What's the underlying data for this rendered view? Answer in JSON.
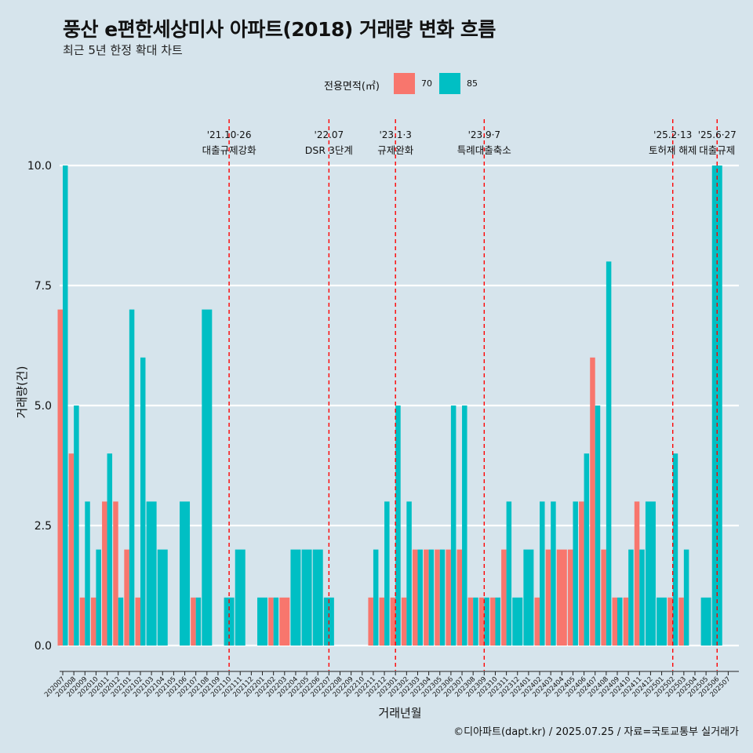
{
  "chart_data": {
    "type": "bar",
    "title": "풍산 e편한세상미사 아파트(2018) 거래량 변화 흐름",
    "subtitle": "최근 5년 한정 확대 차트",
    "xlabel": "거래년월",
    "ylabel": "거래량(건)",
    "ylim": [
      0,
      10
    ],
    "yticks": [
      "0.0",
      "2.5",
      "5.0",
      "7.5",
      "10.0"
    ],
    "legend_title": "전용면적(㎡)",
    "legend_position": "top",
    "categories": [
      "202007",
      "202008",
      "202009",
      "202010",
      "202011",
      "202012",
      "202101",
      "202102",
      "202103",
      "202104",
      "202105",
      "202106",
      "202107",
      "202108",
      "202109",
      "202110",
      "202111",
      "202112",
      "202201",
      "202202",
      "202203",
      "202204",
      "202205",
      "202206",
      "202207",
      "202208",
      "202209",
      "202210",
      "202211",
      "202212",
      "202301",
      "202302",
      "202303",
      "202304",
      "202305",
      "202306",
      "202307",
      "202308",
      "202309",
      "202310",
      "202311",
      "202312",
      "202401",
      "202402",
      "202403",
      "202404",
      "202405",
      "202406",
      "202407",
      "202408",
      "202409",
      "202410",
      "202411",
      "202412",
      "202501",
      "202502",
      "202503",
      "202504",
      "202505",
      "202506",
      "202507"
    ],
    "series": [
      {
        "name": "70",
        "color": "#f8766d",
        "values": [
          7,
          4,
          1,
          1,
          3,
          3,
          2,
          1,
          0,
          0,
          0,
          0,
          1,
          0,
          0,
          0,
          0,
          0,
          0,
          1,
          1,
          0,
          0,
          0,
          0,
          0,
          0,
          0,
          1,
          1,
          1,
          1,
          2,
          2,
          2,
          2,
          2,
          1,
          1,
          1,
          2,
          0,
          0,
          1,
          2,
          2,
          2,
          3,
          6,
          2,
          1,
          1,
          3,
          0,
          0,
          1,
          1,
          0,
          0,
          0,
          0
        ]
      },
      {
        "name": "85",
        "color": "#00bfc4",
        "values": [
          10,
          5,
          3,
          2,
          4,
          1,
          7,
          6,
          3,
          2,
          0,
          3,
          1,
          7,
          0,
          1,
          2,
          0,
          1,
          1,
          0,
          2,
          2,
          2,
          1,
          0,
          0,
          0,
          2,
          3,
          5,
          3,
          2,
          2,
          2,
          5,
          5,
          1,
          1,
          1,
          3,
          1,
          2,
          3,
          3,
          0,
          3,
          4,
          5,
          8,
          1,
          2,
          2,
          3,
          1,
          4,
          2,
          0,
          1,
          10,
          0
        ]
      }
    ],
    "annotations": [
      {
        "date": "'21.10·26",
        "label": "대출규제강화",
        "at": "202110"
      },
      {
        "date": "'22.07",
        "label": "DSR 3단계",
        "at": "202207"
      },
      {
        "date": "'23.1·3",
        "label": "규제완화",
        "at": "202301"
      },
      {
        "date": "'23.9·7",
        "label": "특례대출축소",
        "at": "202309"
      },
      {
        "date": "'25.2·13",
        "label": "토허제 해제",
        "at": "202502"
      },
      {
        "date": "'25.6·27",
        "label": "대출규제",
        "at": "202506"
      }
    ],
    "caption": "©디아파트(dapt.kr) / 2025.07.25 / 자료=국토교통부 실거래가"
  }
}
